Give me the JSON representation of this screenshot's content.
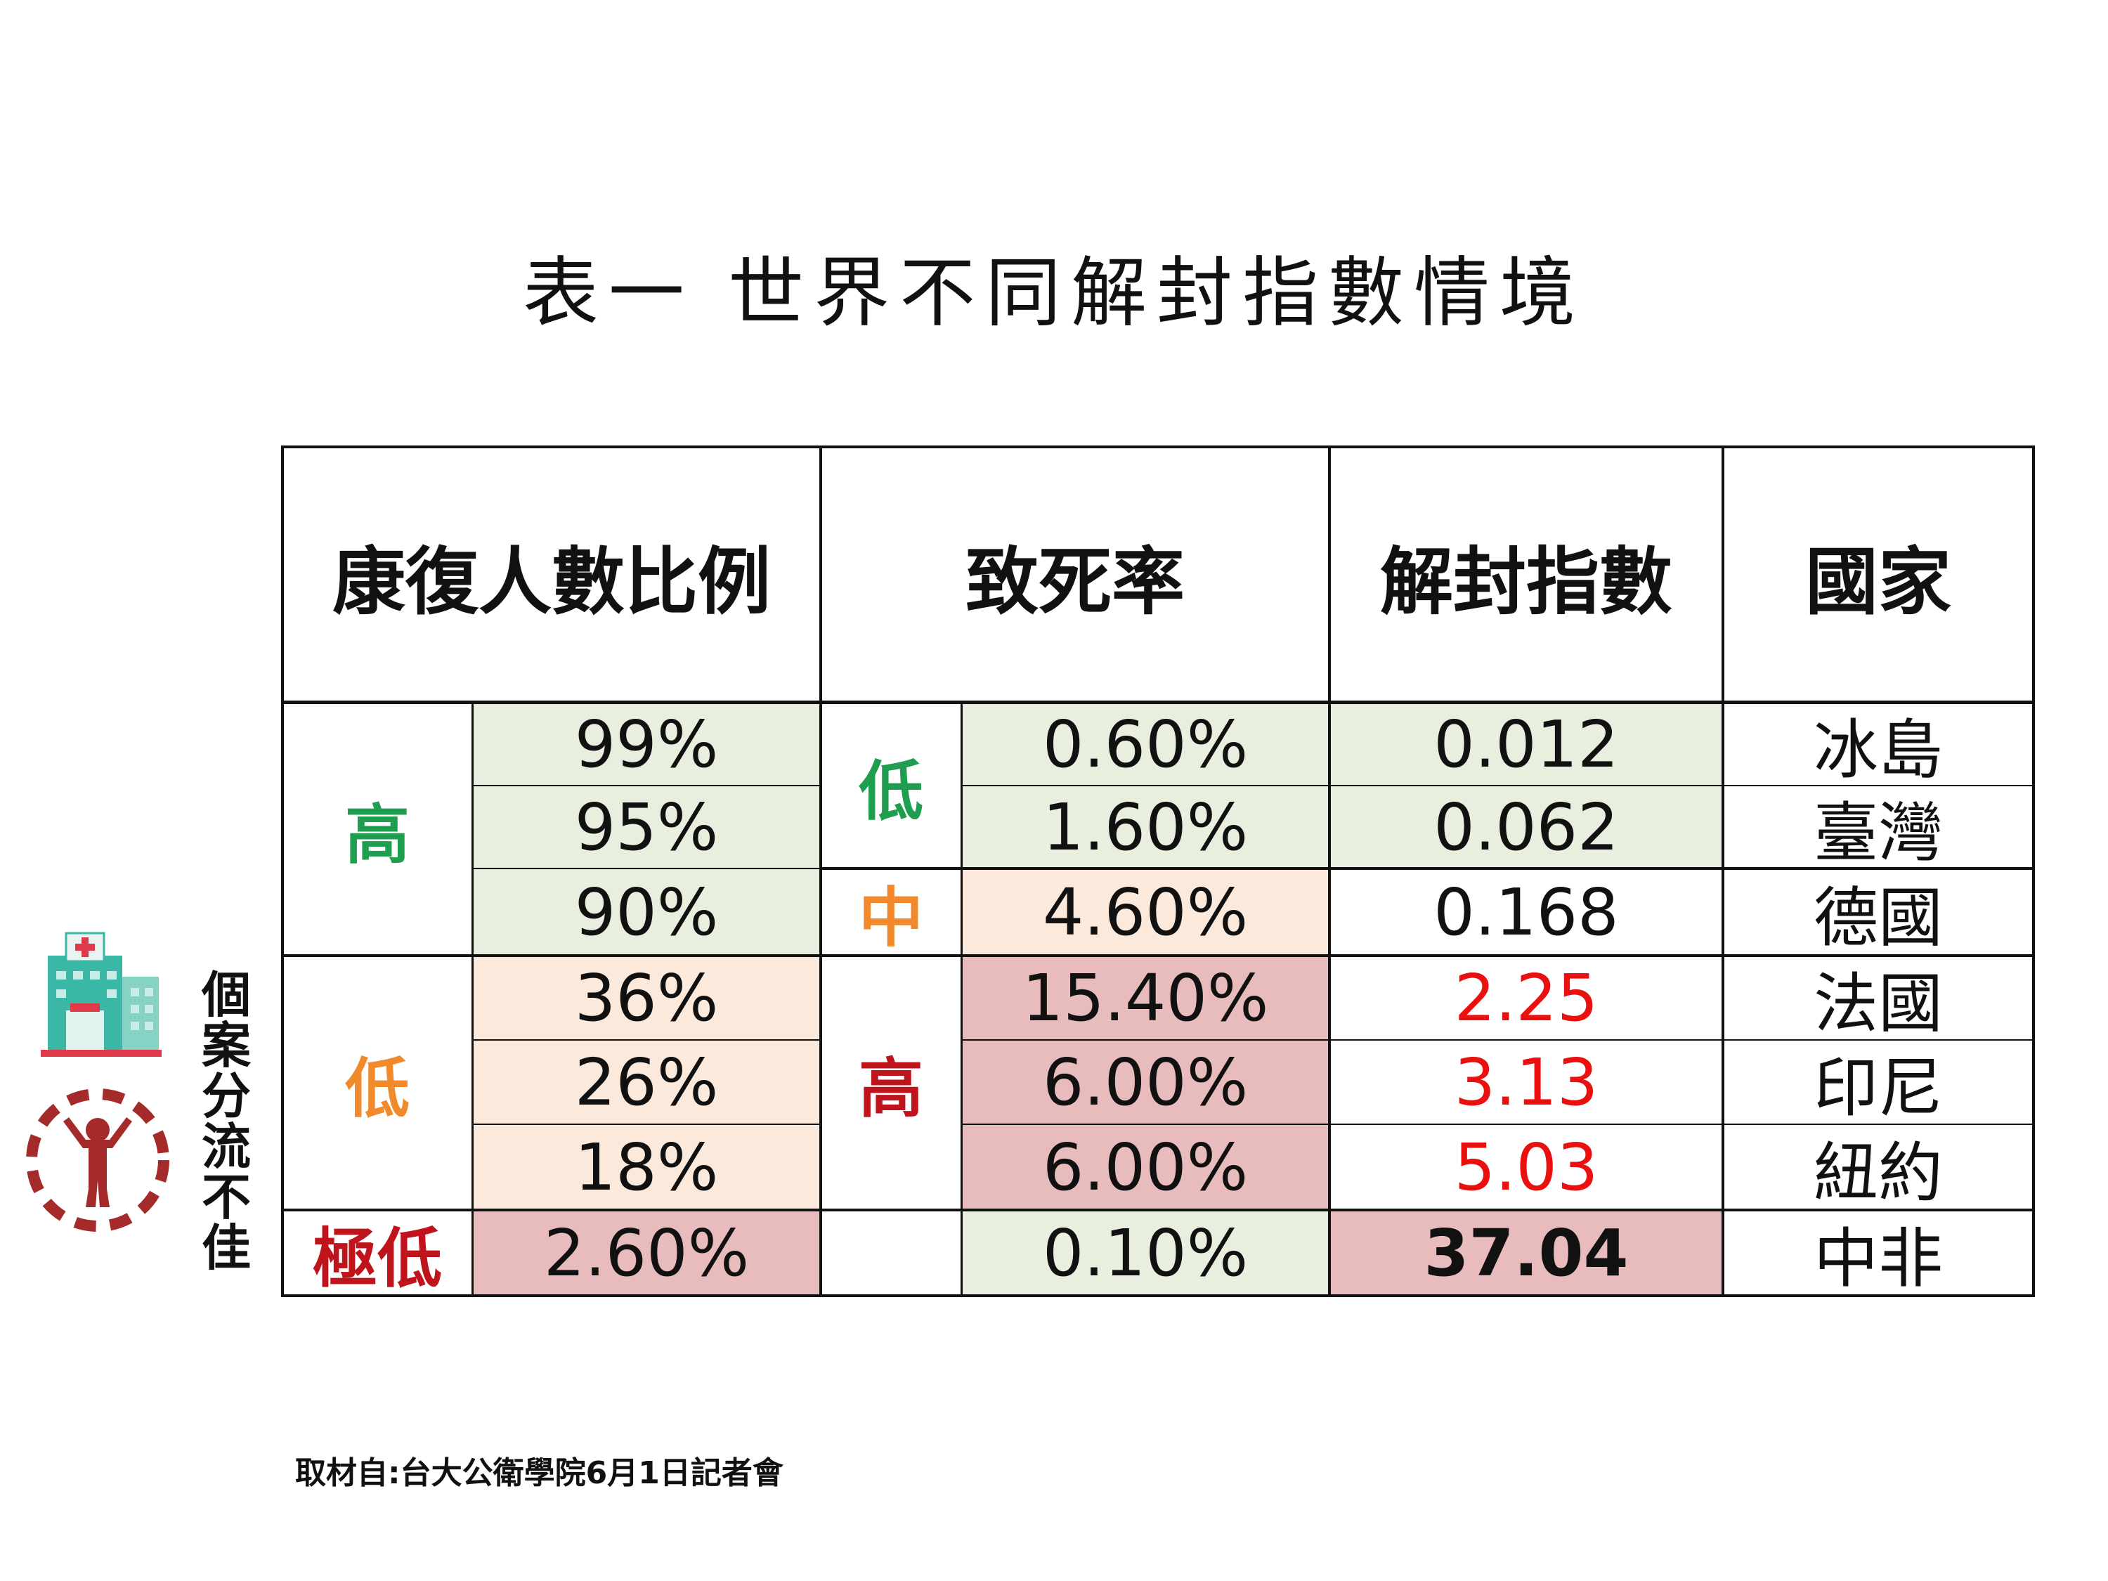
{
  "title": "表一  世界不同解封指數情境",
  "headers": {
    "recovery": "康復人數比例",
    "fatality": "致死率",
    "index": "解封指數",
    "country": "國家"
  },
  "groups": {
    "recovery_high": "高",
    "recovery_low": "低",
    "recovery_very_low": "極低",
    "fatality_low": "低",
    "fatality_mid": "中",
    "fatality_high": "高"
  },
  "rows": [
    {
      "recovery": "99%",
      "fatality": "0.60%",
      "index": "0.012",
      "country": "冰島"
    },
    {
      "recovery": "95%",
      "fatality": "1.60%",
      "index": "0.062",
      "country": "臺灣"
    },
    {
      "recovery": "90%",
      "fatality": "4.60%",
      "index": "0.168",
      "country": "德國"
    },
    {
      "recovery": "36%",
      "fatality": "15.40%",
      "index": "2.25",
      "country": "法國"
    },
    {
      "recovery": "26%",
      "fatality": "6.00%",
      "index": "3.13",
      "country": "印尼"
    },
    {
      "recovery": "18%",
      "fatality": "6.00%",
      "index": "5.03",
      "country": "紐約"
    },
    {
      "recovery": "2.60%",
      "fatality": "0.10%",
      "index": "37.04",
      "country": "中非"
    }
  ],
  "side_note": [
    "個",
    "案",
    "分",
    "流",
    "不",
    "佳"
  ],
  "source": "取材自:台大公衛學院6月1日記者會",
  "icons": [
    "hospital-icon",
    "person-circle-icon"
  ],
  "colors": {
    "green_fill": "#e9efdf",
    "orange_fill": "#fbe9dc",
    "red_fill": "#e8bcbc",
    "green_text": "#1e9e4e",
    "orange_text": "#f08a2c",
    "red_text": "#c0141c",
    "hospital_teal": "#3bb8a5",
    "icon_red": "#a52a2a"
  }
}
